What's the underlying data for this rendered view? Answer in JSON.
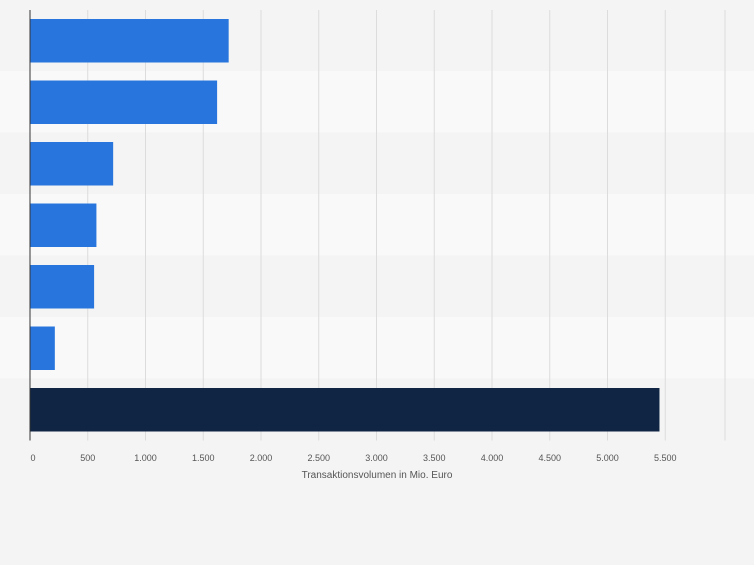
{
  "chart_data": {
    "type": "bar",
    "orientation": "horizontal",
    "categories": [
      "",
      "",
      "",
      "",
      "",
      "",
      ""
    ],
    "values": [
      1720,
      1620,
      720,
      575,
      555,
      215,
      5450
    ],
    "bar_colors": [
      "#2876dd",
      "#2876dd",
      "#2876dd",
      "#2876dd",
      "#2876dd",
      "#2876dd",
      "#0f2543"
    ],
    "xlabel": "Transaktionsvolumen in Mio. Euro",
    "ylabel": "",
    "xlim": [
      0,
      6000
    ],
    "xticks": [
      0,
      500,
      1000,
      1500,
      2000,
      2500,
      3000,
      3500,
      4000,
      4500,
      5000,
      5500
    ],
    "xtick_labels": [
      "0",
      "500",
      "1.000",
      "1.500",
      "2.000",
      "2.500",
      "3.000",
      "3.500",
      "4.000",
      "4.500",
      "5.000",
      "5.500"
    ],
    "grid": true,
    "legend": "none"
  },
  "colors": {
    "background": "#f4f4f4",
    "band_light": "#f9f9f9",
    "band_dark": "#f4f4f4",
    "grid": "#dcdcdc",
    "axis": "#333333",
    "tick_text": "#555555"
  }
}
